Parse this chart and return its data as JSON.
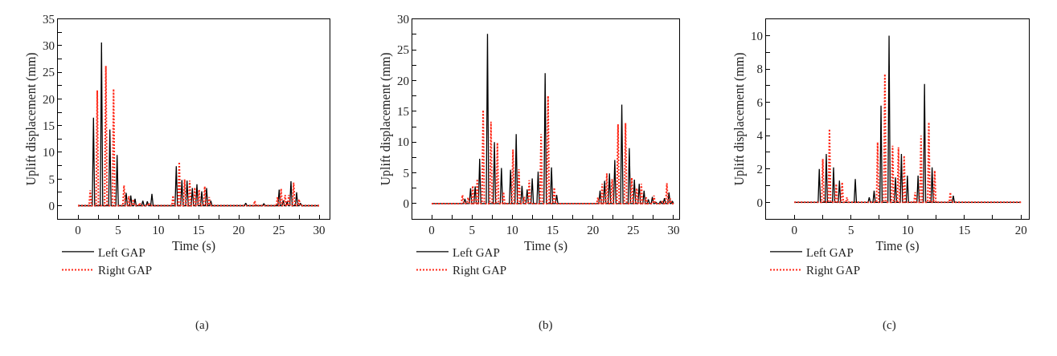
{
  "chart_data": [
    {
      "type": "line",
      "xlabel": "Time (s)",
      "ylabel": "Uplift displacement (mm)",
      "annotations": [
        "(a)"
      ],
      "legend": "bottom left",
      "marker": "none",
      "xlim": [
        -2.5,
        31.3
      ],
      "ylim": [
        -2.5,
        35
      ],
      "xticks": [
        0,
        {
          "value": 2.5,
          "label": null
        },
        5,
        {
          "value": 7.5,
          "label": null
        },
        10,
        {
          "value": 12.5,
          "label": null
        },
        15,
        {
          "value": 17.5,
          "label": null
        },
        20,
        {
          "value": 22.5,
          "label": null
        },
        25,
        {
          "value": 27.5,
          "label": null
        },
        30
      ],
      "yticks": [
        0,
        {
          "value": 2.5,
          "label": null
        },
        5,
        {
          "value": 7.5,
          "label": null
        },
        10,
        {
          "value": 12.5,
          "label": null
        },
        15,
        {
          "value": 17.5,
          "label": null
        },
        20,
        {
          "value": 22.5,
          "label": null
        },
        25,
        {
          "value": 27.5,
          "label": null
        },
        30,
        {
          "value": 32.5,
          "label": null
        },
        35
      ],
      "series": [
        {
          "name": "Left GAP",
          "color": "#000000",
          "line_style": "solid",
          "x": [
            0,
            1.78,
            1.93,
            2.08,
            2.78,
            2.93,
            3.08,
            3.82,
            3.97,
            4.12,
            4.72,
            4.87,
            5.02,
            5.85,
            6.0,
            6.15,
            6.42,
            6.57,
            6.72,
            6.95,
            7.1,
            7.25,
            7.92,
            8.07,
            8.22,
            8.48,
            8.63,
            8.78,
            9.05,
            9.2,
            9.35,
            12.08,
            12.23,
            12.38,
            12.78,
            12.93,
            13.08,
            13.42,
            13.57,
            13.72,
            14.08,
            14.23,
            14.38,
            14.65,
            14.8,
            14.95,
            15.25,
            15.4,
            15.55,
            15.85,
            16.0,
            16.15,
            16.38,
            16.53,
            16.68,
            20.72,
            20.87,
            21.02,
            22.98,
            23.13,
            23.28,
            24.88,
            25.03,
            25.18,
            25.38,
            25.53,
            25.68,
            25.88,
            26.03,
            26.18,
            26.35,
            26.5,
            26.65,
            27.05,
            27.2,
            27.35,
            27.52,
            27.67,
            27.82,
            30
          ],
          "values": [
            0,
            0,
            16.5,
            0,
            0,
            30.6,
            0,
            0,
            14.3,
            0,
            0,
            9.5,
            0,
            0,
            2.4,
            0,
            0,
            1.9,
            0,
            0,
            1.3,
            0,
            0,
            0.9,
            0,
            0,
            0.8,
            0,
            0,
            2.2,
            0,
            0,
            7.4,
            0,
            0,
            4.8,
            0,
            0,
            4.7,
            0,
            0,
            3.3,
            0,
            0,
            4.0,
            0,
            0,
            2.7,
            0,
            0,
            3.3,
            0,
            0,
            0.9,
            0,
            0,
            0.5,
            0,
            0,
            0.4,
            0,
            0,
            3.0,
            0,
            0,
            1.0,
            0,
            0,
            0.8,
            0,
            0,
            4.6,
            0,
            0,
            2.5,
            0,
            0,
            0.5,
            0,
            0
          ]
        },
        {
          "name": "Right GAP",
          "color": "#ff2a1a",
          "line_style": "dotted",
          "x": [
            0,
            1.38,
            1.53,
            1.68,
            2.25,
            2.4,
            2.55,
            3.32,
            3.47,
            3.62,
            4.28,
            4.43,
            4.58,
            5.58,
            5.73,
            5.88,
            6.18,
            6.33,
            6.48,
            6.72,
            6.87,
            7.02,
            7.52,
            7.67,
            7.82,
            8.68,
            8.83,
            8.98,
            11.68,
            11.83,
            11.98,
            12.45,
            12.6,
            12.75,
            13.12,
            13.27,
            13.42,
            13.75,
            13.9,
            14.05,
            14.38,
            14.53,
            14.68,
            14.92,
            15.07,
            15.22,
            15.62,
            15.77,
            15.92,
            16.18,
            16.33,
            16.48,
            21.85,
            22.0,
            22.15,
            24.68,
            24.83,
            24.98,
            25.12,
            25.27,
            25.42,
            25.62,
            25.77,
            25.92,
            26.08,
            26.23,
            26.38,
            26.68,
            26.83,
            26.98,
            27.35,
            27.5,
            27.65,
            30
          ],
          "values": [
            0,
            0,
            2.9,
            0,
            0,
            21.6,
            0,
            0,
            26.2,
            0,
            0,
            21.9,
            0,
            0,
            3.8,
            0,
            0,
            1.8,
            0,
            0,
            1.2,
            0,
            0,
            0.5,
            0,
            0,
            0.5,
            0,
            0,
            1.9,
            0,
            0,
            8.2,
            0,
            0,
            4.9,
            0,
            0,
            4.7,
            0,
            0,
            3.4,
            0,
            0,
            3.0,
            0,
            0,
            3.6,
            0,
            0,
            1.6,
            0,
            0,
            0.9,
            0,
            0,
            1.6,
            0,
            0,
            3.2,
            0,
            0,
            2.0,
            0,
            0,
            2.0,
            0,
            0,
            4.3,
            0,
            0,
            1.2,
            0,
            0
          ]
        }
      ]
    },
    {
      "type": "line",
      "xlabel": "Time (s)",
      "ylabel": "Uplift displacement (mm)",
      "annotations": [
        "(b)"
      ],
      "legend": "bottom left",
      "marker": "none",
      "xlim": [
        -2.4,
        30.7
      ],
      "ylim": [
        -2.5,
        30
      ],
      "xticks": [
        0,
        {
          "value": 2.5,
          "label": null
        },
        5,
        {
          "value": 7.5,
          "label": null
        },
        10,
        {
          "value": 12.5,
          "label": null
        },
        15,
        {
          "value": 17.5,
          "label": null
        },
        20,
        {
          "value": 22.5,
          "label": null
        },
        25,
        {
          "value": 27.5,
          "label": null
        },
        30
      ],
      "yticks": [
        0,
        {
          "value": 2.5,
          "label": null
        },
        5,
        {
          "value": 7.5,
          "label": null
        },
        10,
        {
          "value": 12.5,
          "label": null
        },
        15,
        {
          "value": 17.5,
          "label": null
        },
        20,
        {
          "value": 22.5,
          "label": null
        },
        25,
        {
          "value": 27.5,
          "label": null
        },
        30
      ],
      "series": [
        {
          "name": "Left GAP",
          "color": "#000000",
          "line_style": "solid",
          "x": [
            0,
            3.97,
            4.12,
            4.27,
            4.67,
            4.82,
            4.97,
            5.24,
            5.39,
            5.54,
            5.8,
            5.95,
            6.1,
            6.77,
            6.92,
            7.07,
            7.63,
            7.78,
            7.93,
            8.5,
            8.65,
            8.8,
            9.63,
            9.78,
            9.93,
            10.33,
            10.48,
            10.63,
            11.05,
            11.2,
            11.35,
            11.69,
            11.84,
            11.99,
            12.32,
            12.47,
            12.62,
            13.05,
            13.2,
            13.35,
            13.92,
            14.07,
            14.22,
            14.71,
            14.86,
            15.01,
            15.35,
            15.5,
            15.65,
            20.73,
            20.88,
            21.03,
            21.3,
            21.45,
            21.6,
            21.9,
            22.05,
            22.2,
            22.56,
            22.71,
            22.86,
            23.43,
            23.58,
            23.73,
            24.36,
            24.51,
            24.66,
            24.99,
            25.14,
            25.29,
            25.59,
            25.74,
            25.89,
            26.19,
            26.34,
            26.49,
            26.72,
            26.87,
            27.02,
            27.22,
            27.37,
            27.52,
            27.68,
            27.83,
            27.98,
            28.22,
            28.37,
            28.52,
            28.72,
            28.87,
            29.02,
            29.28,
            29.43,
            29.58,
            29.7,
            29.85,
            30
          ],
          "values": [
            0,
            0,
            0.8,
            0,
            0,
            2.5,
            0,
            0,
            2.8,
            0,
            0,
            7.3,
            0,
            0,
            27.6,
            0,
            0,
            10.0,
            0,
            0,
            5.8,
            0,
            0,
            5.5,
            0,
            0,
            11.3,
            0,
            0,
            2.9,
            0,
            0,
            2.3,
            0,
            0,
            4.1,
            0,
            0,
            5.2,
            0,
            0,
            21.2,
            0,
            0,
            5.9,
            0,
            0,
            1.4,
            0,
            0,
            2.1,
            0,
            0,
            3.7,
            0,
            0,
            4.9,
            0,
            0,
            7.1,
            0,
            0,
            16.1,
            0,
            0,
            9.0,
            0,
            0,
            3.9,
            0,
            0,
            3.2,
            0,
            0,
            2.1,
            0,
            0,
            0.7,
            0,
            0,
            1.1,
            0,
            0,
            0.2,
            0,
            0,
            0.4,
            0,
            0,
            0.9,
            0,
            0,
            1.8,
            0,
            0,
            0.4,
            0
          ]
        },
        {
          "name": "Right GAP",
          "color": "#ff2a1a",
          "line_style": "dotted",
          "x": [
            0,
            3.67,
            3.82,
            3.97,
            4.37,
            4.52,
            4.67,
            4.94,
            5.09,
            5.24,
            5.5,
            5.65,
            5.8,
            6.23,
            6.38,
            6.53,
            7.2,
            7.35,
            7.5,
            8.0,
            8.15,
            8.3,
            8.76,
            8.91,
            9.06,
            9.93,
            10.08,
            10.23,
            10.66,
            10.81,
            10.96,
            11.32,
            11.47,
            11.62,
            11.95,
            12.1,
            12.25,
            13.42,
            13.57,
            13.72,
            14.28,
            14.43,
            14.58,
            15.05,
            15.2,
            15.35,
            20.47,
            20.62,
            20.77,
            21.0,
            21.15,
            21.3,
            21.57,
            21.72,
            21.87,
            22.23,
            22.38,
            22.53,
            22.96,
            23.11,
            23.26,
            23.89,
            24.04,
            24.19,
            24.66,
            24.81,
            24.96,
            25.29,
            25.44,
            25.59,
            25.85,
            26.0,
            26.15,
            26.45,
            26.6,
            26.75,
            27.42,
            27.57,
            27.72,
            28.45,
            28.6,
            28.75,
            29.02,
            29.17,
            29.32,
            29.45,
            29.6,
            29.75,
            30
          ],
          "values": [
            0,
            0,
            1.4,
            0,
            0,
            1.0,
            0,
            0,
            2.9,
            0,
            0,
            4.0,
            0,
            0,
            15.2,
            0,
            0,
            13.3,
            0,
            0,
            9.9,
            0,
            0,
            1.9,
            0,
            0,
            8.8,
            0,
            0,
            5.6,
            0,
            0,
            1.1,
            0,
            0,
            3.8,
            0,
            0,
            11.3,
            0,
            0,
            17.5,
            0,
            0,
            2.6,
            0,
            0,
            1.0,
            0,
            0,
            3.2,
            0,
            0,
            4.9,
            0,
            0,
            4.0,
            0,
            0,
            12.9,
            0,
            0,
            13.1,
            0,
            0,
            4.2,
            0,
            0,
            2.5,
            0,
            0,
            3.2,
            0,
            0,
            1.0,
            0,
            0,
            1.3,
            0,
            0,
            0.3,
            0,
            0,
            3.3,
            0,
            0,
            0.8,
            0,
            0
          ]
        }
      ]
    },
    {
      "type": "line",
      "xlabel": "Time (s)",
      "ylabel": "Uplift displacement (mm)",
      "annotations": [
        "(c)"
      ],
      "legend": "bottom left",
      "marker": "none",
      "xlim": [
        -2.5,
        20.7
      ],
      "ylim": [
        -1,
        11
      ],
      "xticks": [
        0,
        {
          "value": 2.5,
          "label": null
        },
        5,
        {
          "value": 7.5,
          "label": null
        },
        10,
        {
          "value": 12.5,
          "label": null
        },
        15,
        {
          "value": 17.5,
          "label": null
        },
        20
      ],
      "yticks": [
        0,
        {
          "value": 1,
          "label": null
        },
        2,
        {
          "value": 3,
          "label": null
        },
        4,
        {
          "value": 5,
          "label": null
        },
        6,
        {
          "value": 7,
          "label": null
        },
        8,
        {
          "value": 9,
          "label": null
        },
        10
      ],
      "series": [
        {
          "name": "Left GAP",
          "color": "#000000",
          "line_style": "solid",
          "x": [
            0,
            2.1,
            2.2,
            2.3,
            2.72,
            2.82,
            2.92,
            3.36,
            3.46,
            3.56,
            3.88,
            3.98,
            4.08,
            5.28,
            5.38,
            5.48,
            6.51,
            6.61,
            6.71,
            6.94,
            7.04,
            7.14,
            7.55,
            7.65,
            7.75,
            8.26,
            8.36,
            8.46,
            8.83,
            8.93,
            9.03,
            9.35,
            9.45,
            9.55,
            9.88,
            9.98,
            10.08,
            10.82,
            10.92,
            11.02,
            11.39,
            11.49,
            11.59,
            12.06,
            12.16,
            12.26,
            13.93,
            14.03,
            14.13,
            20
          ],
          "values": [
            0,
            0,
            2.0,
            0,
            0,
            2.9,
            0,
            0,
            2.1,
            0,
            0,
            1.3,
            0,
            0,
            1.4,
            0,
            0,
            0.3,
            0,
            0,
            0.7,
            0,
            0,
            5.8,
            0,
            0,
            10.0,
            0,
            0,
            1.5,
            0,
            0,
            2.9,
            0,
            0,
            1.6,
            0,
            0,
            1.6,
            0,
            0,
            7.1,
            0,
            0,
            2.1,
            0,
            0,
            0.4,
            0,
            0
          ]
        },
        {
          "name": "Right GAP",
          "color": "#ff2a1a",
          "line_style": "dotted",
          "x": [
            0,
            2.41,
            2.51,
            2.61,
            3.0,
            3.1,
            3.2,
            3.6,
            3.7,
            3.8,
            4.12,
            4.22,
            4.32,
            4.54,
            4.64,
            4.74,
            7.25,
            7.35,
            7.45,
            7.89,
            7.99,
            8.09,
            8.57,
            8.67,
            8.77,
            9.09,
            9.19,
            9.29,
            9.59,
            9.69,
            9.79,
            10.56,
            10.66,
            10.76,
            11.08,
            11.18,
            11.28,
            11.77,
            11.87,
            11.97,
            12.29,
            12.39,
            12.49,
            13.67,
            13.77,
            13.87,
            20
          ],
          "values": [
            0,
            0,
            2.6,
            0,
            0,
            4.4,
            0,
            0,
            1.1,
            0,
            0,
            1.2,
            0,
            0,
            0.3,
            0,
            0,
            3.6,
            0,
            0,
            7.7,
            0,
            0,
            3.4,
            0,
            0,
            3.3,
            0,
            0,
            2.8,
            0,
            0,
            0.6,
            0,
            0,
            4.0,
            0,
            0,
            4.8,
            0,
            0,
            1.9,
            0,
            0,
            0.6,
            0,
            0
          ]
        }
      ]
    }
  ]
}
